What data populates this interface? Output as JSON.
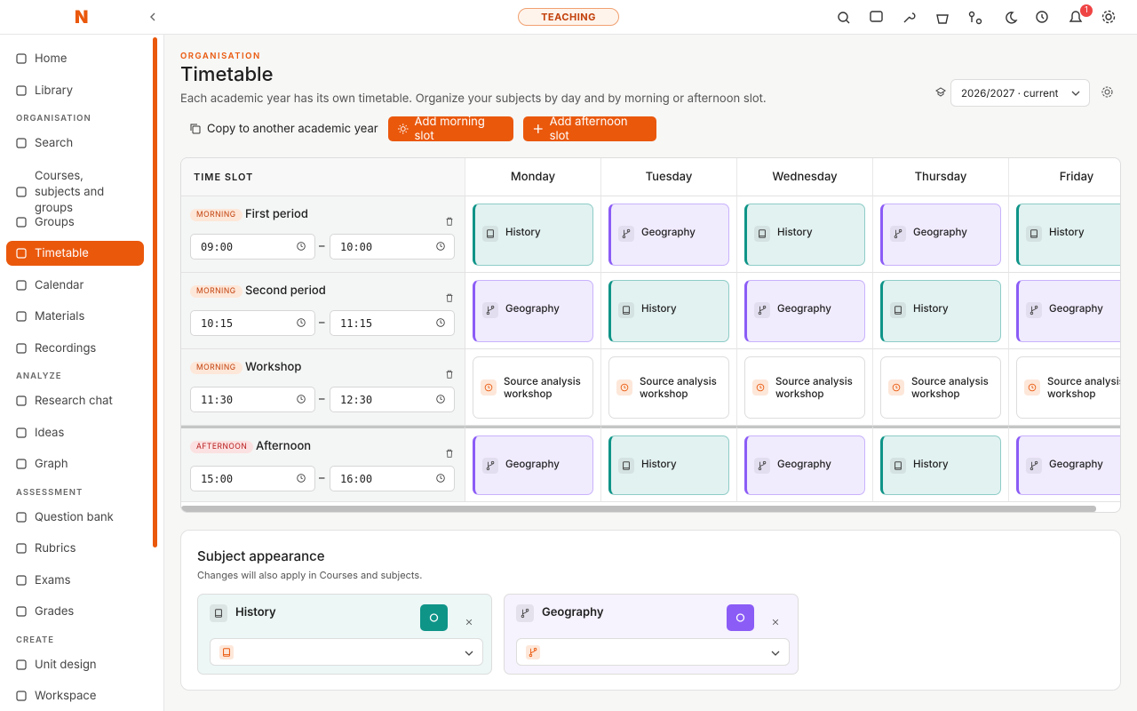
{
  "header": {
    "logo": "N",
    "mode": "TEACHING",
    "notifications": "1"
  },
  "sidebar": {
    "sections": [
      {
        "items": [
          "Home",
          "Library"
        ]
      },
      {
        "heading": "ORGANISATION",
        "items": [
          "Search",
          "Courses, subjects and groups",
          "Groups",
          "Timetable",
          "Calendar",
          "Materials",
          "Recordings"
        ]
      },
      {
        "heading": "ANALYZE",
        "items": [
          "Research chat",
          "Ideas",
          "Graph"
        ]
      },
      {
        "heading": "ASSESSMENT",
        "items": [
          "Question bank",
          "Rubrics",
          "Exams",
          "Grades"
        ]
      },
      {
        "heading": "CREATE",
        "items": [
          "Unit design",
          "Workspace"
        ]
      }
    ],
    "active": "Timetable"
  },
  "page": {
    "eyebrow": "ORGANISATION",
    "title": "Timetable",
    "subtitle": "Each academic year has its own timetable. Organize your subjects by day and by morning or afternoon slot.",
    "year": "2026/2027 · current",
    "actions": [
      "Copy to another academic year",
      "Add morning slot",
      "Add afternoon slot"
    ]
  },
  "timetable": {
    "slot_header": "TIME SLOT",
    "days": [
      "Monday",
      "Tuesday",
      "Wednesday",
      "Thursday",
      "Friday"
    ],
    "rows": [
      {
        "tag": "MORNING",
        "name": "First period",
        "start": "09:00",
        "end": "10:00",
        "cells": [
          "History",
          "Geography",
          "History",
          "Geography",
          "History"
        ]
      },
      {
        "tag": "MORNING",
        "name": "Second period",
        "start": "10:15",
        "end": "11:15",
        "cells": [
          "Geography",
          "History",
          "Geography",
          "History",
          "Geography"
        ]
      },
      {
        "tag": "MORNING",
        "name": "Workshop",
        "start": "11:30",
        "end": "12:30",
        "cells": [
          "Source analysis workshop",
          "Source analysis workshop",
          "Source analysis workshop",
          "Source analysis workshop",
          "Source analysis workshop"
        ]
      },
      {
        "tag": "AFTERNOON",
        "name": "Afternoon",
        "start": "15:00",
        "end": "16:00",
        "cells": [
          "Geography",
          "History",
          "Geography",
          "History",
          "Geography"
        ]
      }
    ]
  },
  "appearance": {
    "title": "Subject appearance",
    "note": "Changes will also apply in Courses and subjects.",
    "subjects": [
      {
        "name": "History",
        "color": "#0f9488"
      },
      {
        "name": "Geography",
        "color": "#8b5cf6"
      }
    ]
  }
}
